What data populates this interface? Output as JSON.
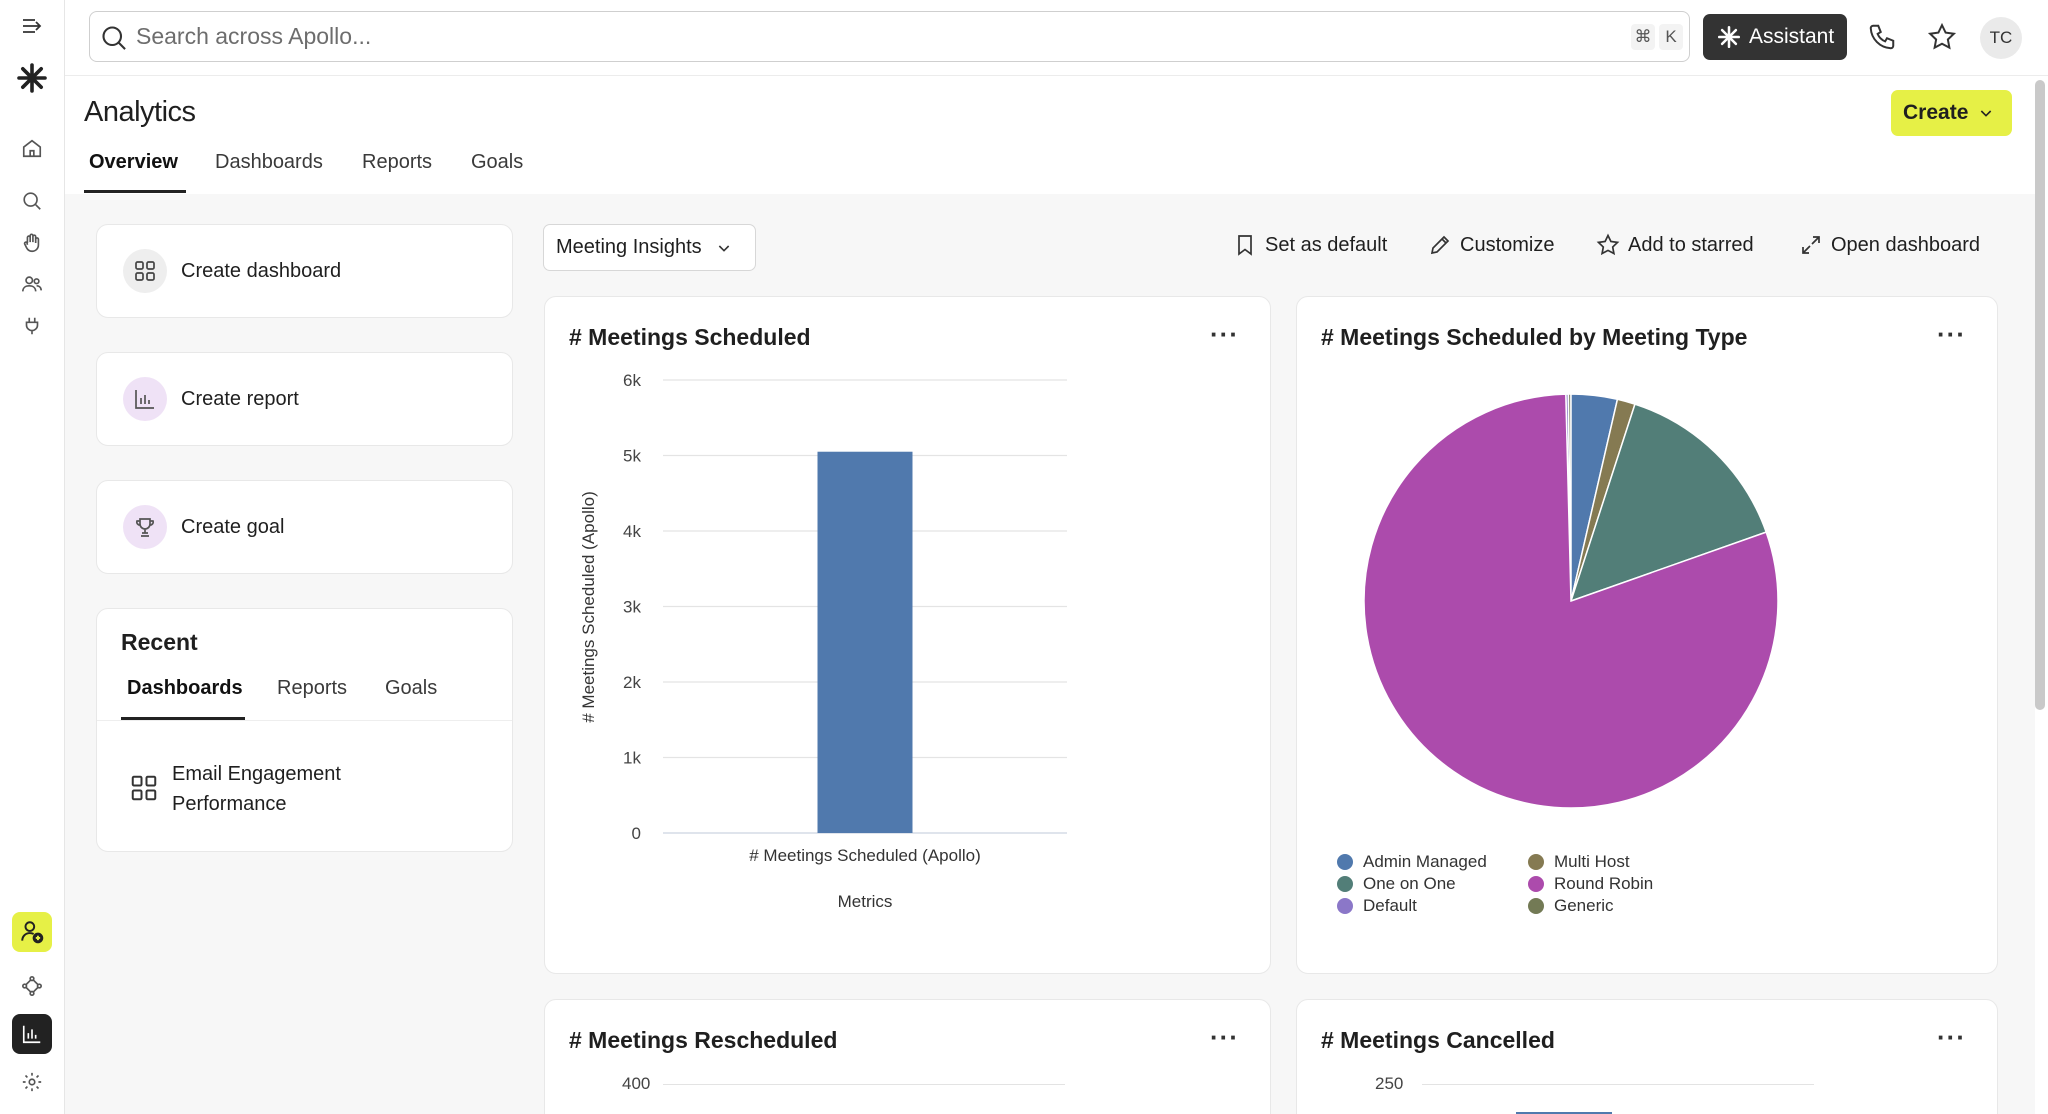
{
  "search": {
    "placeholder": "Search across Apollo...",
    "shortcut_mod": "⌘",
    "shortcut_key": "K"
  },
  "header": {
    "assistant_label": "Assistant",
    "avatar_initials": "TC",
    "create_label": "Create"
  },
  "page": {
    "title": "Analytics",
    "tabs": [
      {
        "label": "Overview"
      },
      {
        "label": "Dashboards"
      },
      {
        "label": "Reports"
      },
      {
        "label": "Goals"
      }
    ]
  },
  "quick_actions": [
    {
      "label": "Create dashboard",
      "icon": "grid-icon"
    },
    {
      "label": "Create report",
      "icon": "bar-chart-icon"
    },
    {
      "label": "Create goal",
      "icon": "trophy-icon"
    }
  ],
  "recent": {
    "title": "Recent",
    "tabs": [
      {
        "label": "Dashboards"
      },
      {
        "label": "Reports"
      },
      {
        "label": "Goals"
      }
    ],
    "items": [
      {
        "line1": "Email Engagement",
        "line2": "Performance",
        "icon": "grid-icon"
      }
    ]
  },
  "dashboard": {
    "selected": "Meeting Insights",
    "actions": [
      {
        "label": "Set as default",
        "icon": "bookmark-icon"
      },
      {
        "label": "Customize",
        "icon": "pencil-icon"
      },
      {
        "label": "Add to starred",
        "icon": "star-icon"
      },
      {
        "label": "Open dashboard",
        "icon": "expand-icon"
      }
    ]
  },
  "colors": {
    "accent": "#e6f046",
    "bar": "#5079ad",
    "dark": "#333333"
  },
  "chart_data": [
    {
      "type": "bar",
      "title": "# Meetings Scheduled",
      "categories": [
        "# Meetings Scheduled (Apollo)"
      ],
      "values": [
        5050
      ],
      "ylabel": "# Meetings Scheduled (Apollo)",
      "xlabel": "Metrics",
      "ylim": [
        0,
        6000
      ],
      "yticks": [
        "0",
        "1k",
        "2k",
        "3k",
        "4k",
        "5k",
        "6k"
      ],
      "grid": true
    },
    {
      "type": "pie",
      "title": "# Meetings Scheduled by Meeting Type",
      "slices": [
        {
          "label": "Admin Managed",
          "value": 3.6,
          "color": "#5079ad"
        },
        {
          "label": "Multi Host",
          "value": 1.4,
          "color": "#857a52"
        },
        {
          "label": "One on One",
          "value": 14.6,
          "color": "#527e78"
        },
        {
          "label": "Round Robin",
          "value": 80.0,
          "color": "#ac4bac"
        },
        {
          "label": "Default",
          "value": 0.2,
          "color": "#8b77c8"
        },
        {
          "label": "Generic",
          "value": 0.2,
          "color": "#737a55"
        }
      ],
      "legend_position": "bottom-left"
    },
    {
      "type": "bar",
      "title": "# Meetings Rescheduled",
      "yticks": [
        "400"
      ]
    },
    {
      "type": "bar",
      "title": "# Meetings Cancelled",
      "yticks": [
        "250"
      ]
    }
  ]
}
